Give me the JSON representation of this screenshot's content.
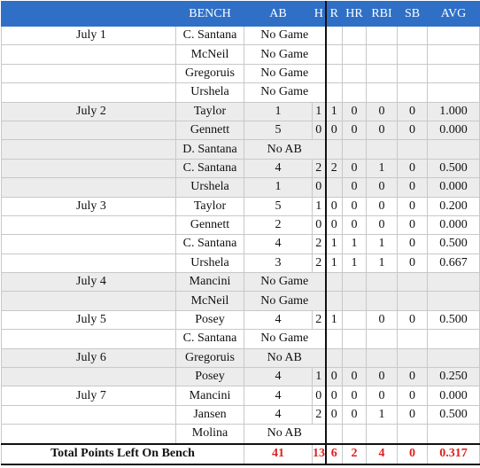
{
  "header": [
    "BENCH",
    "AB",
    "H",
    "R",
    "HR",
    "RBI",
    "SB",
    "AVG"
  ],
  "groups": [
    {
      "date": "July 1",
      "rows": [
        {
          "player": "C. Santana",
          "note": "No Game"
        },
        {
          "player": "McNeil",
          "note": "No Game"
        },
        {
          "player": "Gregoruis",
          "note": "No Game"
        },
        {
          "player": "Urshela",
          "note": "No Game"
        }
      ]
    },
    {
      "date": "July 2",
      "rows": [
        {
          "player": "Taylor",
          "ab": 1,
          "h": 1,
          "r": 1,
          "hr": 0,
          "rbi": 0,
          "sb": 0,
          "avg": "1.000"
        },
        {
          "player": "Gennett",
          "ab": 5,
          "h": 0,
          "r": 0,
          "hr": 0,
          "rbi": 0,
          "sb": 0,
          "avg": "0.000"
        },
        {
          "player": "D. Santana",
          "note": "No AB"
        },
        {
          "player": "C. Santana",
          "ab": 4,
          "h": 2,
          "r": 2,
          "hr": 0,
          "rbi": 1,
          "sb": 0,
          "avg": "0.500"
        },
        {
          "player": "Urshela",
          "ab": 1,
          "h": 0,
          "hr": 0,
          "rbi": 0,
          "sb": 0,
          "avg": "0.000"
        }
      ]
    },
    {
      "date": "July 3",
      "rows": [
        {
          "player": "Taylor",
          "ab": 5,
          "h": 1,
          "r": 0,
          "hr": 0,
          "rbi": 0,
          "sb": 0,
          "avg": "0.200"
        },
        {
          "player": "Gennett",
          "ab": 2,
          "h": 0,
          "r": 0,
          "hr": 0,
          "rbi": 0,
          "sb": 0,
          "avg": "0.000"
        },
        {
          "player": "C. Santana",
          "ab": 4,
          "h": 2,
          "r": 1,
          "hr": 1,
          "rbi": 1,
          "sb": 0,
          "avg": "0.500"
        },
        {
          "player": "Urshela",
          "ab": 3,
          "h": 2,
          "r": 1,
          "hr": 1,
          "rbi": 1,
          "sb": 0,
          "avg": "0.667"
        }
      ]
    },
    {
      "date": "July 4",
      "rows": [
        {
          "player": "Mancini",
          "note": "No Game"
        },
        {
          "player": "McNeil",
          "note": "No Game"
        }
      ]
    },
    {
      "date": "July 5",
      "rows": [
        {
          "player": "Posey",
          "ab": 4,
          "h": 2,
          "r": 1,
          "rbi": 0,
          "sb": 0,
          "avg": "0.500"
        },
        {
          "player": "C. Santana",
          "note": "No Game"
        }
      ]
    },
    {
      "date": "July 6",
      "rows": [
        {
          "player": "Gregoruis",
          "note": "No AB"
        },
        {
          "player": "Posey",
          "ab": 4,
          "h": 1,
          "r": 0,
          "hr": 0,
          "rbi": 0,
          "sb": 0,
          "avg": "0.250"
        }
      ]
    },
    {
      "date": "July 7",
      "rows": [
        {
          "player": "Mancini",
          "ab": 4,
          "h": 0,
          "r": 0,
          "hr": 0,
          "rbi": 0,
          "sb": 0,
          "avg": "0.000"
        },
        {
          "player": "Jansen",
          "ab": 4,
          "h": 2,
          "r": 0,
          "hr": 0,
          "rbi": 1,
          "sb": 0,
          "avg": "0.500"
        },
        {
          "player": "Molina",
          "note": "No AB"
        }
      ]
    }
  ],
  "total": {
    "label": "Total Points Left On Bench",
    "ab": 41,
    "h": 13,
    "r": 6,
    "hr": 2,
    "rbi": 4,
    "sb": 0,
    "avg": "0.317"
  }
}
